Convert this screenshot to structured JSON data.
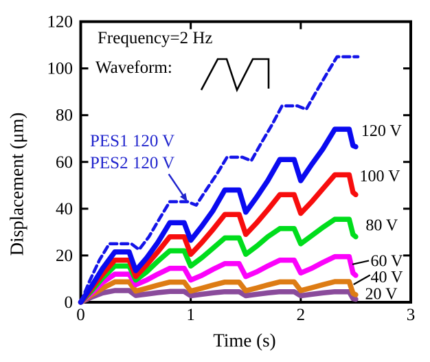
{
  "page": {
    "background": "#ffffff"
  },
  "chart_data": {
    "type": "line",
    "title": "",
    "xlabel": "Time  (s)",
    "ylabel": "Displacement  (μm)",
    "xlim": [
      0,
      3
    ],
    "ylim": [
      0,
      120
    ],
    "xticks": [
      0,
      1,
      2,
      3
    ],
    "yticks": [
      0,
      20,
      40,
      60,
      80,
      100,
      120
    ],
    "grid": false,
    "frame": "closed box, inward ticks on all four sides",
    "legend_position": "labels at right ends of curves",
    "annotations": {
      "frequency": "Frequency=2 Hz",
      "waveform_label": "Waveform:",
      "waveform_icon": "sawtooth-wave",
      "pes1": "PES1 120 V",
      "pes2": "PES2 120 V",
      "pes_text_color": "#2125cd",
      "arrow": {
        "color": "#2125cd",
        "from": [
          0.8,
          54.8
        ],
        "to": [
          0.97,
          43.0
        ]
      }
    },
    "leader_lines": [
      {
        "for": "60 V",
        "from": [
          2.47,
          16.2
        ],
        "to": [
          2.62,
          17.8
        ]
      },
      {
        "for": "40 V",
        "from": [
          2.48,
          7.6
        ],
        "to": [
          2.63,
          11.6
        ]
      }
    ],
    "series": [
      {
        "name": "20 V",
        "label": "20 V",
        "color": "#8a4b9b",
        "style": "solid",
        "line_width": 7.5,
        "label_pos": [
          2.585,
          3.6
        ],
        "points": [
          [
            0,
            0
          ],
          [
            0.1,
            2.2
          ],
          [
            0.2,
            4.0
          ],
          [
            0.31,
            5.0
          ],
          [
            0.44,
            5.0
          ],
          [
            0.5,
            2.9
          ],
          [
            0.6,
            3.5
          ],
          [
            0.7,
            4.1
          ],
          [
            0.81,
            4.6
          ],
          [
            0.94,
            4.6
          ],
          [
            1.0,
            2.8
          ],
          [
            1.1,
            3.4
          ],
          [
            1.2,
            4.0
          ],
          [
            1.31,
            4.5
          ],
          [
            1.44,
            4.5
          ],
          [
            1.5,
            2.8
          ],
          [
            1.6,
            3.4
          ],
          [
            1.7,
            4.0
          ],
          [
            1.81,
            4.5
          ],
          [
            1.94,
            4.5
          ],
          [
            2.0,
            2.8
          ],
          [
            2.1,
            3.4
          ],
          [
            2.2,
            4.0
          ],
          [
            2.31,
            4.5
          ],
          [
            2.44,
            4.5
          ],
          [
            2.475,
            1.6
          ],
          [
            2.5,
            1.3
          ]
        ]
      },
      {
        "name": "40 V",
        "label": "40 V",
        "color": "#dd7c14",
        "style": "solid",
        "line_width": 7.5,
        "label_pos": [
          2.635,
          10.8
        ],
        "points": [
          [
            0,
            0
          ],
          [
            0.1,
            3.2
          ],
          [
            0.2,
            6.0
          ],
          [
            0.31,
            8.7
          ],
          [
            0.44,
            8.7
          ],
          [
            0.5,
            4.8
          ],
          [
            0.6,
            6.0
          ],
          [
            0.7,
            7.3
          ],
          [
            0.81,
            8.6
          ],
          [
            0.94,
            8.6
          ],
          [
            1.0,
            4.8
          ],
          [
            1.1,
            6.0
          ],
          [
            1.2,
            7.3
          ],
          [
            1.31,
            8.6
          ],
          [
            1.44,
            8.6
          ],
          [
            1.5,
            4.9
          ],
          [
            1.6,
            6.1
          ],
          [
            1.7,
            7.4
          ],
          [
            1.81,
            8.7
          ],
          [
            1.94,
            8.7
          ],
          [
            2.0,
            5.0
          ],
          [
            2.1,
            6.2
          ],
          [
            2.2,
            7.5
          ],
          [
            2.31,
            8.8
          ],
          [
            2.44,
            8.8
          ],
          [
            2.475,
            3.8
          ],
          [
            2.5,
            3.2
          ]
        ]
      },
      {
        "name": "60 V",
        "label": "60 V",
        "color": "#fb02fb",
        "style": "solid",
        "line_width": 7.5,
        "label_pos": [
          2.635,
          17.8
        ],
        "points": [
          [
            0,
            0
          ],
          [
            0.1,
            4.0
          ],
          [
            0.2,
            8.5
          ],
          [
            0.31,
            12.0
          ],
          [
            0.44,
            12.0
          ],
          [
            0.5,
            7.5
          ],
          [
            0.6,
            9.5
          ],
          [
            0.7,
            12.0
          ],
          [
            0.81,
            14.5
          ],
          [
            0.94,
            14.5
          ],
          [
            1.0,
            9.5
          ],
          [
            1.1,
            11.5
          ],
          [
            1.2,
            14.0
          ],
          [
            1.31,
            16.5
          ],
          [
            1.44,
            16.5
          ],
          [
            1.5,
            11.0
          ],
          [
            1.6,
            13.0
          ],
          [
            1.7,
            15.5
          ],
          [
            1.81,
            18.0
          ],
          [
            1.94,
            18.0
          ],
          [
            2.0,
            12.5
          ],
          [
            2.1,
            14.5
          ],
          [
            2.2,
            17.0
          ],
          [
            2.31,
            19.5
          ],
          [
            2.44,
            19.5
          ],
          [
            2.475,
            12.5
          ],
          [
            2.5,
            11.5
          ]
        ]
      },
      {
        "name": "80 V",
        "label": "80 V",
        "color": "#00dd1c",
        "style": "solid",
        "line_width": 7.5,
        "label_pos": [
          2.59,
          33.0
        ],
        "points": [
          [
            0,
            0
          ],
          [
            0.1,
            5.0
          ],
          [
            0.2,
            10.5
          ],
          [
            0.31,
            15.5
          ],
          [
            0.44,
            15.5
          ],
          [
            0.5,
            9.5
          ],
          [
            0.6,
            13.0
          ],
          [
            0.7,
            17.5
          ],
          [
            0.81,
            22.0
          ],
          [
            0.94,
            22.0
          ],
          [
            1.0,
            15.5
          ],
          [
            1.1,
            19.0
          ],
          [
            1.2,
            23.0
          ],
          [
            1.31,
            27.5
          ],
          [
            1.44,
            27.5
          ],
          [
            1.5,
            20.5
          ],
          [
            1.6,
            24.0
          ],
          [
            1.7,
            28.0
          ],
          [
            1.81,
            31.5
          ],
          [
            1.94,
            31.5
          ],
          [
            2.0,
            25.0
          ],
          [
            2.1,
            28.5
          ],
          [
            2.2,
            32.0
          ],
          [
            2.31,
            35.5
          ],
          [
            2.44,
            35.5
          ],
          [
            2.475,
            29.0
          ],
          [
            2.5,
            28.0
          ]
        ]
      },
      {
        "name": "100 V",
        "label": "100 V",
        "color": "#f70d0d",
        "style": "solid",
        "line_width": 7.5,
        "label_pos": [
          2.535,
          54.0
        ],
        "points": [
          [
            0,
            0
          ],
          [
            0.1,
            6.0
          ],
          [
            0.2,
            12.0
          ],
          [
            0.31,
            18.0
          ],
          [
            0.44,
            18.0
          ],
          [
            0.5,
            11.0
          ],
          [
            0.6,
            16.0
          ],
          [
            0.7,
            21.5
          ],
          [
            0.81,
            28.0
          ],
          [
            0.94,
            28.0
          ],
          [
            1.0,
            20.5
          ],
          [
            1.1,
            25.5
          ],
          [
            1.2,
            31.0
          ],
          [
            1.31,
            37.5
          ],
          [
            1.44,
            37.5
          ],
          [
            1.5,
            29.0
          ],
          [
            1.6,
            34.0
          ],
          [
            1.7,
            39.5
          ],
          [
            1.81,
            46.0
          ],
          [
            1.94,
            46.0
          ],
          [
            2.0,
            38.0
          ],
          [
            2.1,
            43.0
          ],
          [
            2.2,
            48.5
          ],
          [
            2.31,
            54.5
          ],
          [
            2.44,
            54.5
          ],
          [
            2.475,
            47.0
          ],
          [
            2.5,
            46.0
          ]
        ]
      },
      {
        "name": "120 V",
        "label": "120 V",
        "color": "#0a0af0",
        "style": "solid",
        "line_width": 7.5,
        "label_pos": [
          2.55,
          73.5
        ],
        "points": [
          [
            0,
            0
          ],
          [
            0.1,
            7.0
          ],
          [
            0.2,
            14.5
          ],
          [
            0.31,
            21.5
          ],
          [
            0.44,
            21.5
          ],
          [
            0.5,
            13.5
          ],
          [
            0.6,
            19.0
          ],
          [
            0.7,
            25.5
          ],
          [
            0.81,
            34.0
          ],
          [
            0.94,
            34.0
          ],
          [
            1.0,
            26.5
          ],
          [
            1.1,
            32.5
          ],
          [
            1.2,
            39.0
          ],
          [
            1.31,
            48.0
          ],
          [
            1.44,
            48.0
          ],
          [
            1.5,
            38.5
          ],
          [
            1.6,
            45.0
          ],
          [
            1.7,
            52.0
          ],
          [
            1.81,
            61.0
          ],
          [
            1.94,
            61.0
          ],
          [
            2.0,
            52.0
          ],
          [
            2.1,
            59.0
          ],
          [
            2.2,
            65.5
          ],
          [
            2.31,
            74.0
          ],
          [
            2.44,
            74.0
          ],
          [
            2.475,
            67.0
          ],
          [
            2.5,
            66.5
          ]
        ]
      },
      {
        "name": "PES1+PES2 120 V",
        "label": "",
        "color": "#1414e8",
        "style": "dashed",
        "line_width": 4.5,
        "label_pos": null,
        "points": [
          [
            0,
            0
          ],
          [
            0.08,
            9.0
          ],
          [
            0.17,
            18.0
          ],
          [
            0.26,
            25.0
          ],
          [
            0.46,
            25.0
          ],
          [
            0.53,
            22.5
          ],
          [
            0.62,
            28.0
          ],
          [
            0.72,
            36.0
          ],
          [
            0.81,
            43.0
          ],
          [
            0.97,
            43.0
          ],
          [
            1.05,
            41.5
          ],
          [
            1.14,
            48.0
          ],
          [
            1.24,
            55.0
          ],
          [
            1.33,
            62.0
          ],
          [
            1.47,
            62.0
          ],
          [
            1.55,
            60.5
          ],
          [
            1.64,
            68.0
          ],
          [
            1.74,
            76.0
          ],
          [
            1.83,
            84.0
          ],
          [
            1.97,
            84.0
          ],
          [
            2.05,
            82.5
          ],
          [
            2.14,
            90.0
          ],
          [
            2.24,
            98.0
          ],
          [
            2.33,
            105.0
          ],
          [
            2.52,
            105.0
          ]
        ]
      }
    ]
  }
}
